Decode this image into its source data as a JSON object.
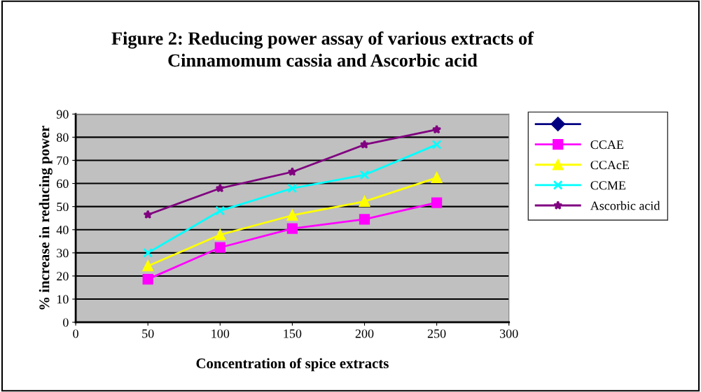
{
  "chart_data": {
    "type": "line",
    "title": "Figure 2: Reducing power assay of various extracts of\nCinnamomum cassia and Ascorbic acid",
    "xlabel": "Concentration of spice extracts",
    "ylabel": "% increase in reducing power",
    "x": [
      50,
      100,
      150,
      200,
      250
    ],
    "series": [
      {
        "color": "#000080",
        "marker": "diamond",
        "values": [
          null,
          null,
          null,
          null,
          null
        ]
      },
      {
        "name": "CCAE",
        "color": "#ff00ff",
        "marker": "square",
        "values": [
          18.6,
          32.3,
          40.5,
          44.5,
          51.7
        ]
      },
      {
        "name": "CCAcE",
        "color": "#ffff00",
        "marker": "triangle",
        "values": [
          24.3,
          37.8,
          46.2,
          52.2,
          62.5
        ]
      },
      {
        "name": "CCME",
        "color": "#00ffff",
        "marker": "cross",
        "values": [
          30,
          48.2,
          57.9,
          63.7,
          76.8
        ]
      },
      {
        "name": "Ascorbic acid",
        "color": "#800080",
        "marker": "star",
        "values": [
          46.5,
          57.9,
          65,
          76.8,
          83.3
        ]
      }
    ],
    "xlim": [
      0,
      300
    ],
    "xticks": [
      0,
      50,
      100,
      150,
      200,
      250,
      300
    ],
    "ylim": [
      0,
      90
    ],
    "yticks": [
      0,
      10,
      20,
      30,
      40,
      50,
      60,
      70,
      80,
      90
    ],
    "grid": "y",
    "legend": "right"
  }
}
